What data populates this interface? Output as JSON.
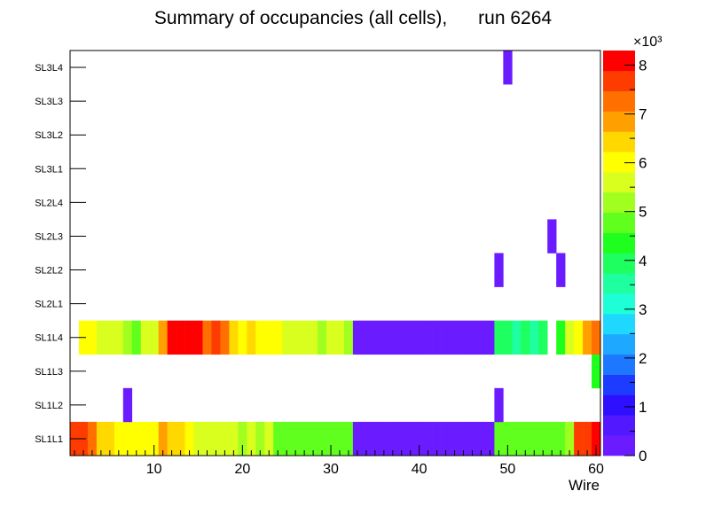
{
  "chart_data": {
    "type": "heatmap",
    "title": "Summary of occupancies (all cells),      run 6264",
    "xlabel": "Wire",
    "ylabel": "",
    "xlim": [
      0.5,
      60.5
    ],
    "xticks": [
      10,
      20,
      30,
      40,
      50,
      60
    ],
    "xtick_labels": [
      "10",
      "20",
      "30",
      "40",
      "50",
      "60"
    ],
    "layers": [
      "SL1L1",
      "SL1L2",
      "SL1L3",
      "SL1L4",
      "SL2L1",
      "SL2L2",
      "SL2L3",
      "SL2L4",
      "SL3L1",
      "SL3L2",
      "SL3L3",
      "SL3L4"
    ],
    "zlim": [
      0,
      8300
    ],
    "z_multiplier_label": "×10³",
    "z_ticks": [
      0,
      1000,
      2000,
      3000,
      4000,
      5000,
      6000,
      7000,
      8000
    ],
    "z_tick_labels": [
      "0",
      "1",
      "2",
      "3",
      "4",
      "5",
      "6",
      "7",
      "8"
    ],
    "palette": [
      "#6a1bff",
      "#5218ff",
      "#2e10ff",
      "#1d3cff",
      "#1e78ff",
      "#1ea8ff",
      "#1ed8ff",
      "#1effd8",
      "#1effa0",
      "#1eff60",
      "#1eff1e",
      "#60ff1e",
      "#a0ff1e",
      "#d8ff1e",
      "#ffff00",
      "#ffd800",
      "#ffa000",
      "#ff7000",
      "#ff3c00",
      "#ff0000"
    ],
    "rows": {
      "SL1L1": [
        7600,
        7600,
        7400,
        6400,
        6600,
        6200,
        6200,
        6200,
        6200,
        6200,
        6800,
        6300,
        6300,
        6000,
        5400,
        5400,
        5400,
        5400,
        5400,
        5200,
        5500,
        5200,
        5400,
        4700,
        4700,
        4700,
        4700,
        4700,
        4700,
        4700,
        4700,
        4700,
        100,
        100,
        100,
        100,
        100,
        100,
        100,
        100,
        100,
        100,
        100,
        100,
        100,
        100,
        100,
        100,
        4600,
        4600,
        4600,
        4600,
        4600,
        4600,
        4600,
        4600,
        5100,
        7500,
        7800,
        8100
      ],
      "SL1L2": [
        0,
        0,
        0,
        0,
        0,
        0,
        100,
        0,
        0,
        0,
        0,
        0,
        0,
        0,
        0,
        0,
        0,
        0,
        0,
        0,
        0,
        0,
        0,
        0,
        0,
        0,
        0,
        0,
        0,
        0,
        0,
        0,
        0,
        0,
        0,
        0,
        0,
        0,
        0,
        0,
        0,
        0,
        0,
        0,
        0,
        0,
        0,
        0,
        100,
        0,
        0,
        0,
        0,
        0,
        0,
        0,
        0,
        0,
        0,
        0
      ],
      "SL1L3": [
        0,
        0,
        0,
        0,
        0,
        0,
        0,
        0,
        0,
        0,
        0,
        0,
        0,
        0,
        0,
        0,
        0,
        0,
        0,
        0,
        0,
        0,
        0,
        0,
        0,
        0,
        0,
        0,
        0,
        0,
        0,
        0,
        0,
        0,
        0,
        0,
        0,
        0,
        0,
        0,
        0,
        0,
        0,
        0,
        0,
        0,
        0,
        0,
        0,
        0,
        0,
        0,
        0,
        0,
        0,
        0,
        0,
        0,
        0,
        4200
      ],
      "SL1L4": [
        0,
        6100,
        5900,
        5400,
        5400,
        5400,
        5200,
        4900,
        5400,
        5700,
        7000,
        8300,
        8300,
        8300,
        8300,
        7300,
        7800,
        7200,
        6300,
        6100,
        6300,
        6000,
        6000,
        6000,
        5700,
        5400,
        5400,
        5400,
        5200,
        5400,
        5700,
        5100,
        100,
        100,
        100,
        100,
        100,
        100,
        100,
        100,
        100,
        100,
        100,
        100,
        100,
        100,
        100,
        100,
        3800,
        3800,
        3600,
        3800,
        3600,
        4000,
        0,
        4400,
        5400,
        6200,
        7000,
        7200
      ],
      "SL2L1": [
        0,
        0,
        0,
        0,
        0,
        0,
        0,
        0,
        0,
        0,
        0,
        0,
        0,
        0,
        0,
        0,
        0,
        0,
        0,
        0,
        0,
        0,
        0,
        0,
        0,
        0,
        0,
        0,
        0,
        0,
        0,
        0,
        0,
        0,
        0,
        0,
        0,
        0,
        0,
        0,
        0,
        0,
        0,
        0,
        0,
        0,
        0,
        0,
        0,
        0,
        0,
        0,
        0,
        0,
        0,
        0,
        0,
        0,
        0,
        0
      ],
      "SL2L2": [
        0,
        0,
        0,
        0,
        0,
        0,
        0,
        0,
        0,
        0,
        0,
        0,
        0,
        0,
        0,
        0,
        0,
        0,
        0,
        0,
        0,
        0,
        0,
        0,
        0,
        0,
        0,
        0,
        0,
        0,
        0,
        0,
        0,
        0,
        0,
        0,
        0,
        0,
        0,
        0,
        0,
        0,
        0,
        0,
        0,
        0,
        0,
        0,
        100,
        0,
        0,
        0,
        0,
        0,
        0,
        100,
        0,
        0,
        0,
        0
      ],
      "SL2L3": [
        0,
        0,
        0,
        0,
        0,
        0,
        0,
        0,
        0,
        0,
        0,
        0,
        0,
        0,
        0,
        0,
        0,
        0,
        0,
        0,
        0,
        0,
        0,
        0,
        0,
        0,
        0,
        0,
        0,
        0,
        0,
        0,
        0,
        0,
        0,
        0,
        0,
        0,
        0,
        0,
        0,
        0,
        0,
        0,
        0,
        0,
        0,
        0,
        0,
        0,
        0,
        0,
        0,
        0,
        100,
        0,
        0,
        0,
        0,
        0
      ],
      "SL2L4": [
        0,
        0,
        0,
        0,
        0,
        0,
        0,
        0,
        0,
        0,
        0,
        0,
        0,
        0,
        0,
        0,
        0,
        0,
        0,
        0,
        0,
        0,
        0,
        0,
        0,
        0,
        0,
        0,
        0,
        0,
        0,
        0,
        0,
        0,
        0,
        0,
        0,
        0,
        0,
        0,
        0,
        0,
        0,
        0,
        0,
        0,
        0,
        0,
        0,
        0,
        0,
        0,
        0,
        0,
        0,
        0,
        0,
        0,
        0,
        0
      ],
      "SL3L1": [
        0,
        0,
        0,
        0,
        0,
        0,
        0,
        0,
        0,
        0,
        0,
        0,
        0,
        0,
        0,
        0,
        0,
        0,
        0,
        0,
        0,
        0,
        0,
        0,
        0,
        0,
        0,
        0,
        0,
        0,
        0,
        0,
        0,
        0,
        0,
        0,
        0,
        0,
        0,
        0,
        0,
        0,
        0,
        0,
        0,
        0,
        0,
        0,
        0,
        0,
        0,
        0,
        0,
        0,
        0,
        0,
        0,
        0,
        0,
        0
      ],
      "SL3L2": [
        0,
        0,
        0,
        0,
        0,
        0,
        0,
        0,
        0,
        0,
        0,
        0,
        0,
        0,
        0,
        0,
        0,
        0,
        0,
        0,
        0,
        0,
        0,
        0,
        0,
        0,
        0,
        0,
        0,
        0,
        0,
        0,
        0,
        0,
        0,
        0,
        0,
        0,
        0,
        0,
        0,
        0,
        0,
        0,
        0,
        0,
        0,
        0,
        0,
        0,
        0,
        0,
        0,
        0,
        0,
        0,
        0,
        0,
        0,
        0
      ],
      "SL3L3": [
        0,
        0,
        0,
        0,
        0,
        0,
        0,
        0,
        0,
        0,
        0,
        0,
        0,
        0,
        0,
        0,
        0,
        0,
        0,
        0,
        0,
        0,
        0,
        0,
        0,
        0,
        0,
        0,
        0,
        0,
        0,
        0,
        0,
        0,
        0,
        0,
        0,
        0,
        0,
        0,
        0,
        0,
        0,
        0,
        0,
        0,
        0,
        0,
        0,
        0,
        0,
        0,
        0,
        0,
        0,
        0,
        0,
        0,
        0,
        0
      ],
      "SL3L4": [
        0,
        0,
        0,
        0,
        0,
        0,
        0,
        0,
        0,
        0,
        0,
        0,
        0,
        0,
        0,
        0,
        0,
        0,
        0,
        0,
        0,
        0,
        0,
        0,
        0,
        0,
        0,
        0,
        0,
        0,
        0,
        0,
        0,
        0,
        0,
        0,
        0,
        0,
        0,
        0,
        0,
        0,
        0,
        0,
        0,
        0,
        0,
        0,
        0,
        100,
        0,
        0,
        0,
        0,
        0,
        0,
        0,
        0,
        0,
        0
      ]
    }
  }
}
